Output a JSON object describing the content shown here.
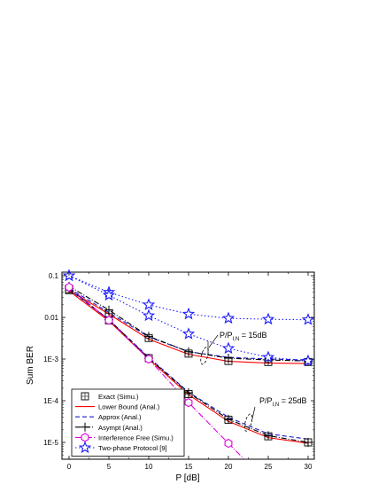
{
  "chart_data": {
    "type": "line",
    "xlabel": "P [dB]",
    "ylabel": "Sum BER",
    "x_ticks": [
      "0",
      "5",
      "10",
      "15",
      "20",
      "25",
      "30"
    ],
    "y_ticks": [
      "1E-5",
      "1E-4",
      "1E-3",
      "0.01",
      "0.1"
    ],
    "xlim": [
      0,
      30
    ],
    "ylim": [
      7e-06,
      0.11
    ],
    "y_scale": "log",
    "legend_position": "bottom-left",
    "annotations": [
      {
        "text": "P/P",
        "subscript": "I,N",
        "suffix": " = 15dB",
        "target_x": 17,
        "target_y": 0.0012
      },
      {
        "text": "P/P",
        "subscript": "I,N",
        "suffix": " = 25dB",
        "target_x": 22.5,
        "target_y": 3e-05
      }
    ],
    "series": [
      {
        "name": "Exact (Simu.)",
        "color": "#000000",
        "dash": "none",
        "marker": "square-plus",
        "lines": false,
        "curves": [
          {
            "x": [
              0,
              5,
              10,
              15,
              20,
              25,
              30
            ],
            "y": [
              0.048,
              0.0125,
              0.0032,
              0.00135,
              0.0009,
              0.00085,
              0.00085
            ]
          },
          {
            "x": [
              0,
              5,
              10,
              15,
              20,
              25,
              30
            ],
            "y": [
              0.045,
              0.0085,
              0.00105,
              0.000145,
              3.5e-05,
              1.4e-05,
              1e-05
            ]
          }
        ]
      },
      {
        "name": "Lower Bound (Anal.)",
        "color": "#ff0000",
        "dash": "none",
        "marker": "none",
        "lines": true,
        "curves": [
          {
            "x": [
              0,
              5,
              10,
              15,
              20,
              25,
              30
            ],
            "y": [
              0.045,
              0.012,
              0.003,
              0.0013,
              0.00088,
              0.0008,
              0.00078
            ]
          },
          {
            "x": [
              0,
              5,
              10,
              15,
              20,
              25,
              30
            ],
            "y": [
              0.043,
              0.0082,
              0.001,
              0.00014,
              3.2e-05,
              1.3e-05,
              9.5e-06
            ]
          }
        ]
      },
      {
        "name": "Approx (Anal.)",
        "color": "#1a1acc",
        "dash": "5,3",
        "marker": "none",
        "lines": true,
        "curves": [
          {
            "x": [
              0,
              5,
              10,
              15,
              20,
              25,
              30
            ],
            "y": [
              0.05,
              0.013,
              0.0034,
              0.0015,
              0.0011,
              0.001,
              0.00095
            ]
          },
          {
            "x": [
              0,
              5,
              10,
              15,
              20,
              25,
              30
            ],
            "y": [
              0.047,
              0.0088,
              0.0011,
              0.00016,
              4e-05,
              1.6e-05,
              1.2e-05
            ]
          }
        ]
      },
      {
        "name": "Asympt (Anal.)",
        "color": "#000000",
        "dash": "6,2,1,2",
        "marker": "plus",
        "lines": true,
        "curves": [
          {
            "x": [
              0,
              5,
              10,
              15,
              20,
              25,
              30
            ],
            "y": [
              0.056,
              0.015,
              0.0035,
              0.0015,
              0.00105,
              0.00095,
              0.0009
            ]
          },
          {
            "x": [
              0,
              5,
              10,
              15,
              20,
              25,
              30
            ],
            "y": [
              0.05,
              0.0088,
              0.00105,
              0.000155,
              3.6e-05,
              1.45e-05,
              1e-05
            ]
          }
        ]
      },
      {
        "name": "Interference Free (Simu.)",
        "color": "#dd00dd",
        "dash": "7,2,1,2",
        "marker": "hexagon",
        "lines": true,
        "curves": [
          {
            "x": [
              0,
              5,
              10,
              15,
              20,
              23.5
            ],
            "y": [
              0.053,
              0.0085,
              0.001,
              9e-05,
              9.5e-06,
              2e-06
            ],
            "marker_count": 5
          }
        ]
      },
      {
        "name": "Two-phase Protocol [9]",
        "color": "#1a1aff",
        "dash": "1.5,2.5",
        "marker": "star",
        "lines": true,
        "curves": [
          {
            "x": [
              0,
              5,
              10,
              15,
              20,
              25,
              30
            ],
            "y": [
              0.1,
              0.04,
              0.02,
              0.012,
              0.0095,
              0.009,
              0.0088
            ]
          },
          {
            "x": [
              0,
              5,
              10,
              15,
              20,
              25,
              30
            ],
            "y": [
              0.1,
              0.034,
              0.011,
              0.004,
              0.0018,
              0.0011,
              0.0009
            ]
          }
        ]
      }
    ]
  }
}
